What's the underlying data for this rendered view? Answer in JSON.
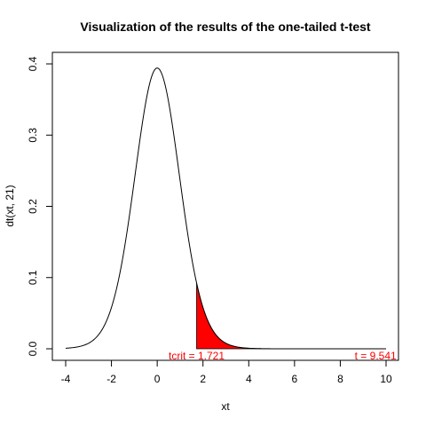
{
  "chart_data": {
    "type": "line",
    "title": "Visualization of the results of the one-tailed t-test",
    "xlabel": "xt",
    "ylabel": "dt(xt, 21)",
    "xlim": [
      -4,
      10
    ],
    "ylim": [
      0,
      0.4
    ],
    "x_ticks": [
      -4,
      -2,
      0,
      2,
      4,
      6,
      8,
      10
    ],
    "y_ticks": [
      0.0,
      0.1,
      0.2,
      0.3,
      0.4
    ],
    "x_tick_labels": [
      "-4",
      "-2",
      "0",
      "2",
      "4",
      "6",
      "8",
      "10"
    ],
    "y_tick_labels": [
      "0.0",
      "0.1",
      "0.2",
      "0.3",
      "0.4"
    ],
    "grid": false,
    "series": [
      {
        "distribution": "Student t",
        "df": 21,
        "x_range": [
          -4,
          10
        ],
        "color": "#000000"
      }
    ],
    "shaded_region": {
      "from": 1.721,
      "to": 10,
      "color": "#ff0000"
    },
    "annotations": [
      {
        "text": "tcrit = 1.721",
        "x": 1.721,
        "y": 0,
        "color": "#ff0000"
      },
      {
        "text": "t = 9.541",
        "x": 9.541,
        "y": 0,
        "color": "#ff0000"
      }
    ]
  }
}
